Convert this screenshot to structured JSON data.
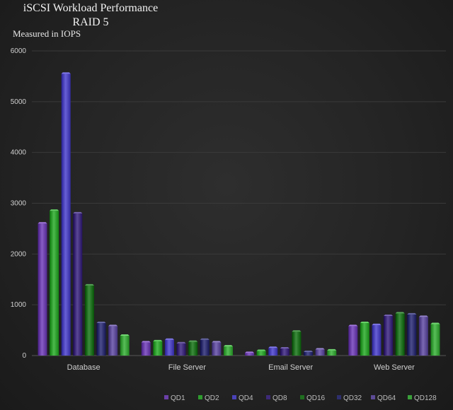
{
  "chart_data": {
    "type": "bar",
    "title_lines": [
      "iSCSI Workload Performance",
      "RAID 5"
    ],
    "subtitle": "Measured in IOPS",
    "categories": [
      "Database",
      "File Server",
      "Email Server",
      "Web Server"
    ],
    "ylim": [
      0,
      6000
    ],
    "yticks": [
      0,
      1000,
      2000,
      3000,
      4000,
      5000,
      6000
    ],
    "grid": true,
    "legend_position": "bottom",
    "series": [
      {
        "name": "QD1",
        "color": "#6a3fa8",
        "values": [
          2600,
          260,
          50,
          580
        ]
      },
      {
        "name": "QD2",
        "color": "#2e9c2e",
        "values": [
          2850,
          280,
          90,
          640
        ]
      },
      {
        "name": "QD4",
        "color": "#4a42b8",
        "values": [
          5550,
          310,
          150,
          600
        ]
      },
      {
        "name": "QD8",
        "color": "#3d2a78",
        "values": [
          2800,
          240,
          140,
          780
        ]
      },
      {
        "name": "QD16",
        "color": "#1f6e1f",
        "values": [
          1380,
          270,
          470,
          830
        ]
      },
      {
        "name": "QD32",
        "color": "#2e2f6e",
        "values": [
          640,
          310,
          70,
          810
        ]
      },
      {
        "name": "QD64",
        "color": "#5d4b96",
        "values": [
          580,
          260,
          120,
          760
        ]
      },
      {
        "name": "QD128",
        "color": "#3aa03a",
        "values": [
          390,
          180,
          100,
          620
        ]
      }
    ]
  }
}
